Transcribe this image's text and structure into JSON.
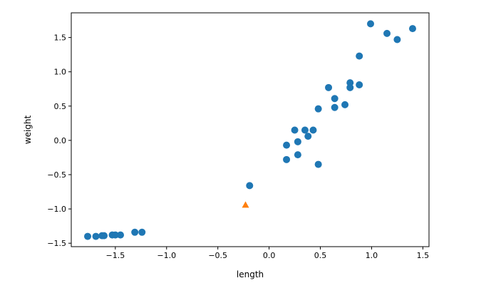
{
  "chart_data": {
    "type": "scatter",
    "title": "",
    "xlabel": "length",
    "ylabel": "weight",
    "xlim": [
      -1.93,
      1.56
    ],
    "ylim": [
      -1.55,
      1.86
    ],
    "grid": false,
    "xticks": [
      -1.5,
      -1.0,
      -0.5,
      0.0,
      0.5,
      1.0,
      1.5
    ],
    "xtick_labels": [
      "−1.5",
      "−1.0",
      "−0.5",
      "0.0",
      "0.5",
      "1.0",
      "1.5"
    ],
    "yticks": [
      1.5,
      1.0,
      0.5,
      0.0,
      -0.5,
      -1.0,
      -1.5
    ],
    "ytick_labels": [
      "1.5",
      "1.0",
      "0.5",
      "0.0",
      "−0.5",
      "−1.0",
      "−1.5"
    ],
    "series": [
      {
        "marker": "circle",
        "color": "#1f77b4",
        "points": [
          [
            0.99,
            1.7
          ],
          [
            1.15,
            1.56
          ],
          [
            1.25,
            1.47
          ],
          [
            1.4,
            1.63
          ],
          [
            0.88,
            1.23
          ],
          [
            0.79,
            0.84
          ],
          [
            0.79,
            0.77
          ],
          [
            0.88,
            0.81
          ],
          [
            0.58,
            0.77
          ],
          [
            0.64,
            0.61
          ],
          [
            0.64,
            0.48
          ],
          [
            0.74,
            0.52
          ],
          [
            0.48,
            0.46
          ],
          [
            0.25,
            0.15
          ],
          [
            0.35,
            0.15
          ],
          [
            0.43,
            0.15
          ],
          [
            0.38,
            0.06
          ],
          [
            0.28,
            -0.02
          ],
          [
            0.17,
            -0.07
          ],
          [
            0.28,
            -0.21
          ],
          [
            0.17,
            -0.28
          ],
          [
            0.48,
            -0.35
          ],
          [
            -0.19,
            -0.66
          ],
          [
            -1.77,
            -1.4
          ],
          [
            -1.69,
            -1.4
          ],
          [
            -1.63,
            -1.39
          ],
          [
            -1.53,
            -1.38
          ],
          [
            -1.61,
            -1.39
          ],
          [
            -1.5,
            -1.38
          ],
          [
            -1.45,
            -1.38
          ],
          [
            -1.31,
            -1.34
          ],
          [
            -1.24,
            -1.34
          ]
        ]
      },
      {
        "marker": "triangle",
        "color": "#ff7f0e",
        "points": [
          [
            -0.23,
            -0.94
          ]
        ]
      }
    ]
  }
}
